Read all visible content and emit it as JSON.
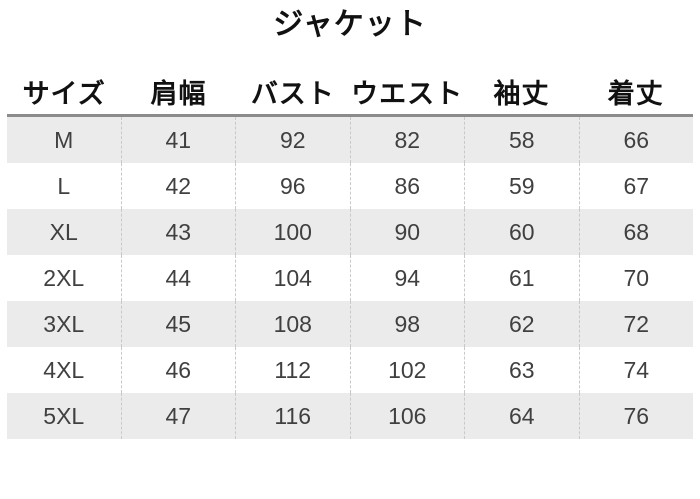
{
  "title": "ジャケット",
  "colors": {
    "background": "#ffffff",
    "zebra_row": "#ebebeb",
    "table_top_border": "#8b8b8b",
    "column_divider_dash": "#c9c9c9",
    "cell_text": "#404040",
    "heading_text": "#111111"
  },
  "chart_data": {
    "type": "table",
    "title": "ジャケット",
    "columns": [
      "サイズ",
      "肩幅",
      "バスト",
      "ウエスト",
      "袖丈",
      "着丈"
    ],
    "rows": [
      [
        "M",
        41,
        92,
        82,
        58,
        66
      ],
      [
        "L",
        42,
        96,
        86,
        59,
        67
      ],
      [
        "XL",
        43,
        100,
        90,
        60,
        68
      ],
      [
        "2XL",
        44,
        104,
        94,
        61,
        70
      ],
      [
        "3XL",
        45,
        108,
        98,
        62,
        72
      ],
      [
        "4XL",
        46,
        112,
        102,
        63,
        74
      ],
      [
        "5XL",
        47,
        116,
        106,
        64,
        76
      ]
    ],
    "layout_hints": {
      "zebra_striping": "odd rows shaded gray starting with first data row",
      "column_count": 6,
      "equal_column_widths": true,
      "grid": "dashed vertical dividers only, solid top border, no outer frame"
    }
  }
}
